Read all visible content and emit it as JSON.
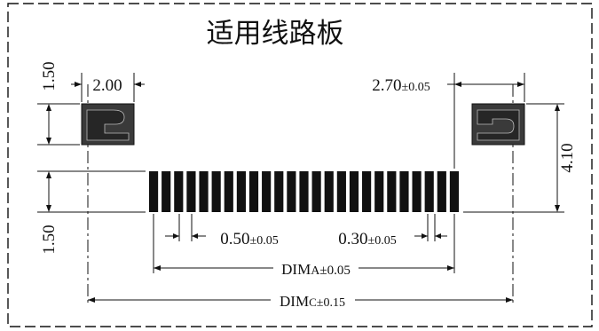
{
  "title": "适用线路板",
  "dims": {
    "pad_height": "1.50",
    "pad_width": "2.00",
    "pad_gap": "2.70",
    "pad_gap_tol": "±0.05",
    "height_total": "4.10",
    "finger_height": "1.50",
    "pitch": "0.50",
    "pitch_tol": "±0.05",
    "finger_width": "0.30",
    "finger_width_tol": "±0.05",
    "dim_a_main": "DIM",
    "dim_a_small": "A",
    "dim_a_tol": "±0.05",
    "dim_c_main": "DIM",
    "dim_c_small": "C",
    "dim_c_tol": "±0.15"
  },
  "finger_count": 25,
  "colors": {
    "ink": "#111111",
    "pad_fill": "#3a3a3a",
    "background": "#ffffff"
  }
}
